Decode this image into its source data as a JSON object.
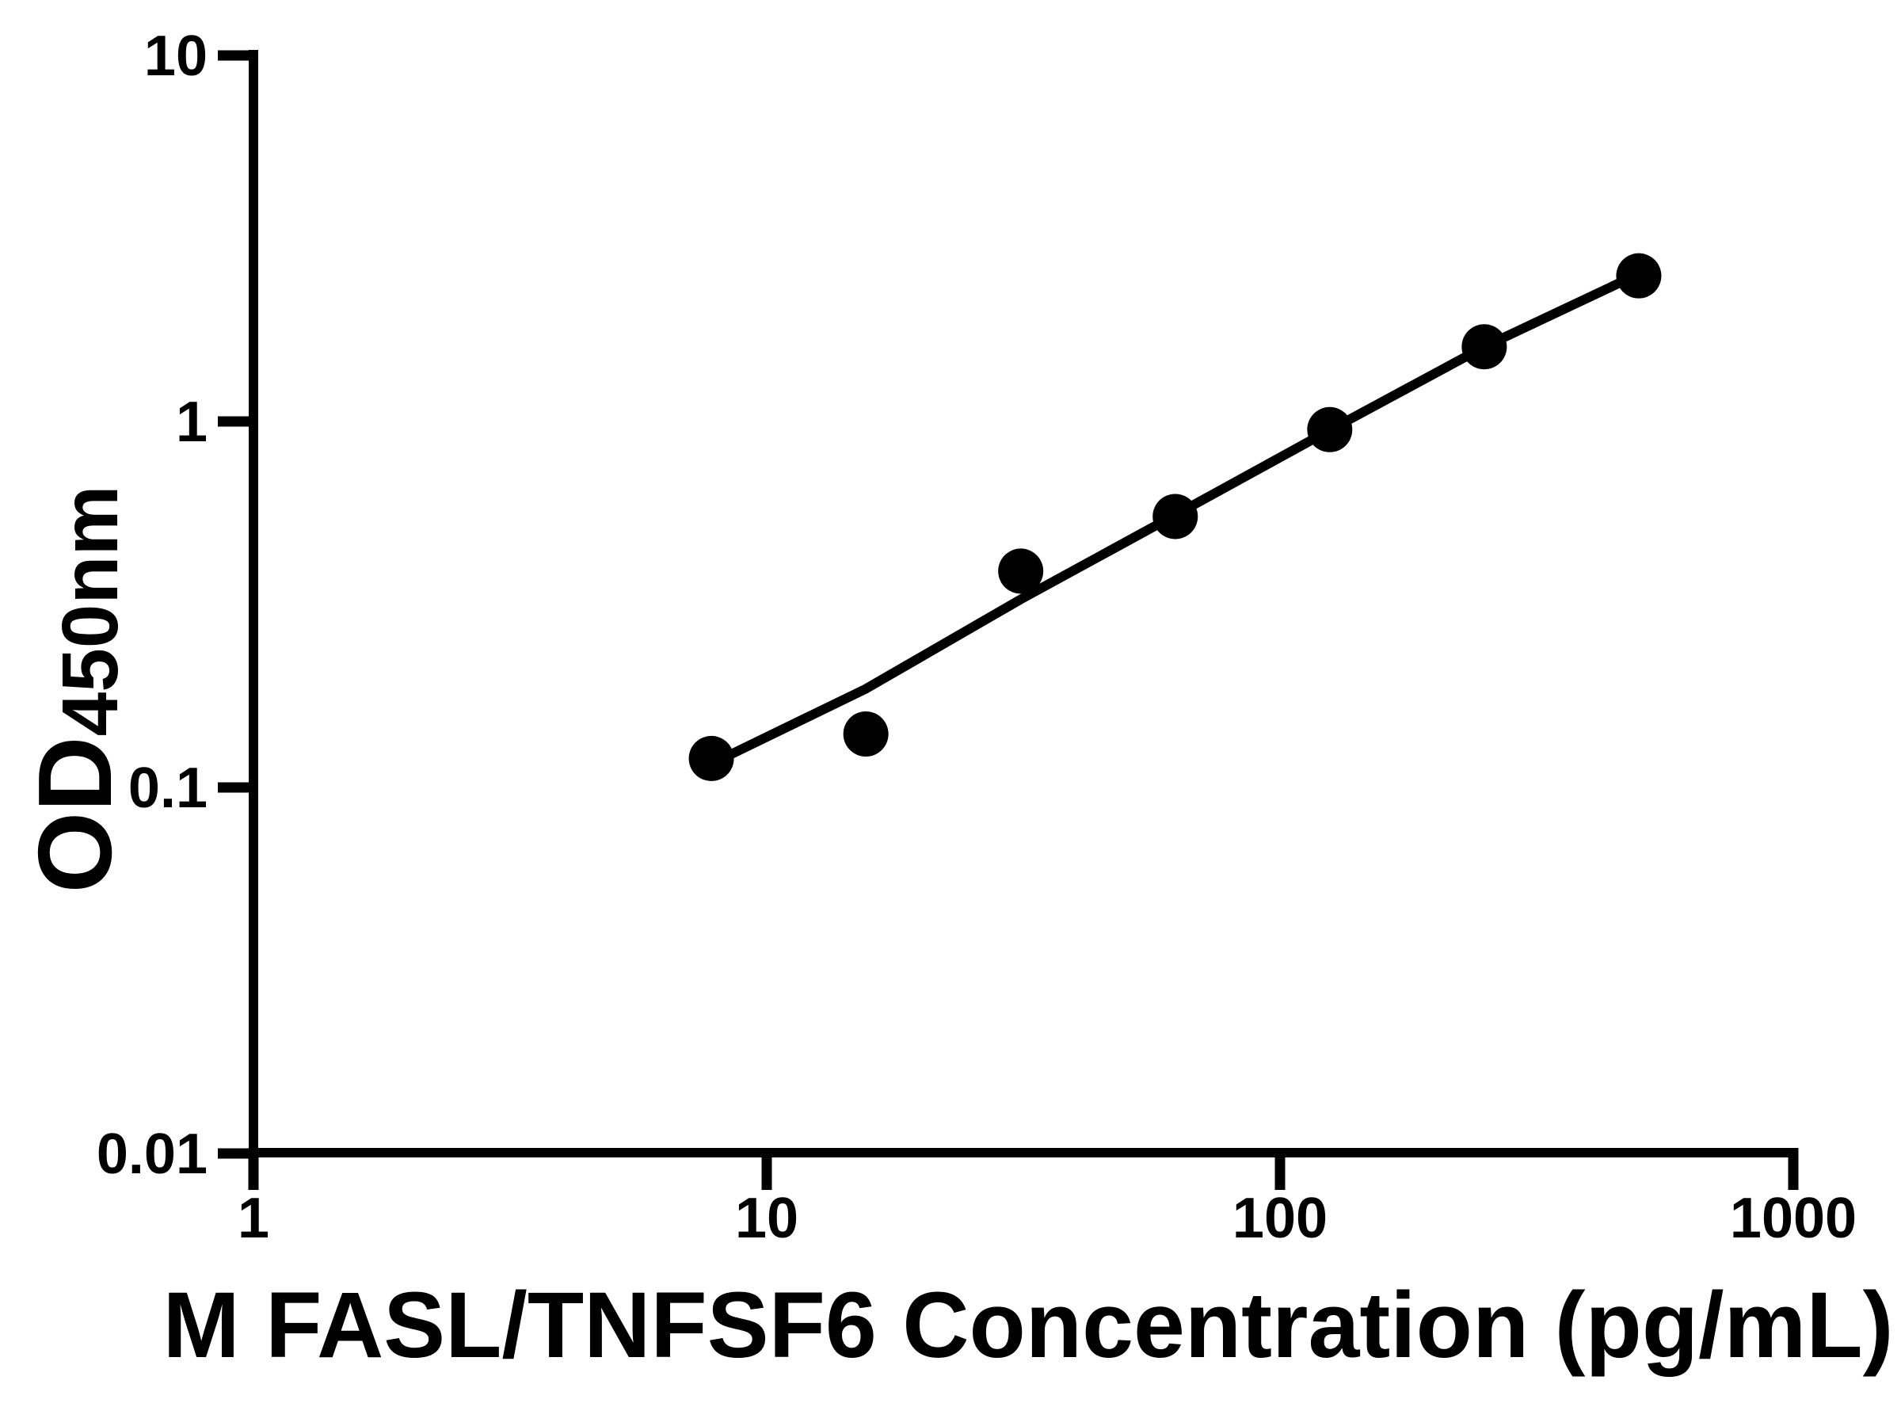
{
  "figure": {
    "background": "#ffffff",
    "ink": "#000000"
  },
  "chart_data": {
    "type": "scatter",
    "title": "",
    "xlabel": "M FASL/TNFSF6 Concentration (pg/mL)",
    "ylabel_main": "OD",
    "ylabel_sub": "450nm",
    "x_scale": "log10",
    "y_scale": "log10",
    "xlim": [
      1,
      1000
    ],
    "ylim": [
      0.01,
      10
    ],
    "grid": false,
    "legend": false,
    "x_ticks": [
      {
        "v": 1,
        "label": "1"
      },
      {
        "v": 10,
        "label": "10"
      },
      {
        "v": 100,
        "label": "100"
      },
      {
        "v": 1000,
        "label": "1000"
      }
    ],
    "y_ticks": [
      {
        "v": 10,
        "label": "10"
      },
      {
        "v": 1,
        "label": "1"
      },
      {
        "v": 0.1,
        "label": "0.1"
      },
      {
        "v": 0.01,
        "label": "0.01"
      }
    ],
    "series": [
      {
        "name": "4pl-fit-line",
        "type": "line",
        "color": "#000000",
        "points": [
          [
            8.0,
            0.118
          ],
          [
            15.6,
            0.186
          ],
          [
            31.3,
            0.327
          ],
          [
            62.6,
            0.556
          ],
          [
            125,
            0.947
          ],
          [
            250,
            1.6
          ],
          [
            470,
            2.43
          ]
        ]
      },
      {
        "name": "standard-points",
        "type": "scatter",
        "marker": "filled-circle",
        "color": "#000000",
        "points": [
          [
            7.8,
            0.12
          ],
          [
            15.6,
            0.14
          ],
          [
            31.25,
            0.39
          ],
          [
            62.5,
            0.55
          ],
          [
            125,
            0.95
          ],
          [
            250,
            1.6
          ],
          [
            500,
            2.5
          ]
        ]
      }
    ]
  }
}
